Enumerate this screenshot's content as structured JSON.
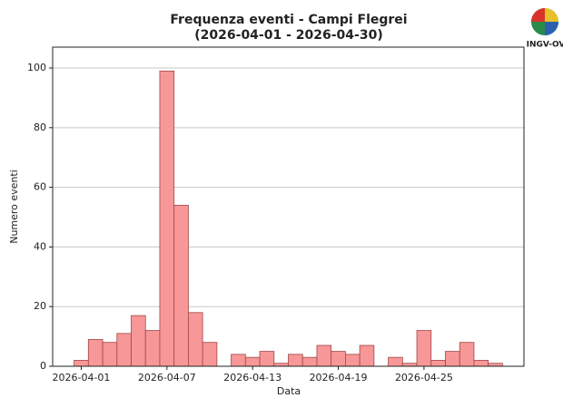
{
  "chart_data": {
    "type": "bar",
    "title": "Frequenza eventi - Campi Flegrei",
    "subtitle": "(2026-04-01 - 2026-04-30)",
    "x_label": "Data",
    "y_label": "Numero eventi",
    "x": [
      "2026-04-01",
      "2026-04-02",
      "2026-04-03",
      "2026-04-04",
      "2026-04-05",
      "2026-04-06",
      "2026-04-07",
      "2026-04-08",
      "2026-04-09",
      "2026-04-10",
      "2026-04-11",
      "2026-04-12",
      "2026-04-13",
      "2026-04-14",
      "2026-04-15",
      "2026-04-16",
      "2026-04-17",
      "2026-04-18",
      "2026-04-19",
      "2026-04-20",
      "2026-04-21",
      "2026-04-22",
      "2026-04-23",
      "2026-04-24",
      "2026-04-25",
      "2026-04-26",
      "2026-04-27",
      "2026-04-28",
      "2026-04-29",
      "2026-04-30"
    ],
    "values": [
      2,
      9,
      8,
      11,
      17,
      12,
      99,
      54,
      18,
      8,
      0,
      4,
      3,
      5,
      1,
      4,
      3,
      7,
      5,
      4,
      7,
      0,
      3,
      1,
      12,
      2,
      5,
      8,
      2,
      1
    ],
    "color": "#f79797",
    "edge_color": "#a04848",
    "xlim": [
      "2026-03-30",
      "2026-05-02"
    ],
    "xticks": [
      "2026-04-01",
      "2026-04-07",
      "2026-04-13",
      "2026-04-19",
      "2026-04-25"
    ],
    "ylim": [
      0,
      107
    ],
    "yticks": [
      0,
      20,
      40,
      60,
      80,
      100
    ],
    "grid": true
  },
  "logo_text": "INGV-OV"
}
